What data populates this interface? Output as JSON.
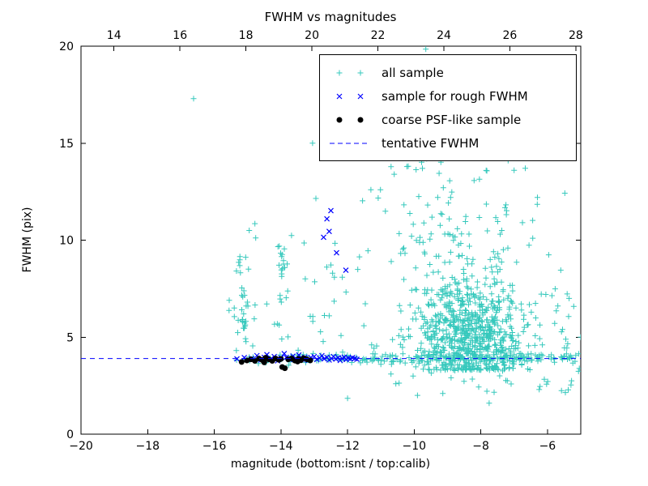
{
  "title": "FWHM vs magnitudes",
  "axes": {
    "bottom": {
      "label": "magnitude (bottom:isnt / top:calib)",
      "ticks": [
        -20,
        -18,
        -16,
        -14,
        -12,
        -10,
        -8,
        -6
      ],
      "labels": [
        "−20",
        "−18",
        "−16",
        "−14",
        "−12",
        "−10",
        "−8",
        "−6"
      ]
    },
    "top": {
      "ticks": [
        14,
        16,
        18,
        20,
        22,
        24,
        26,
        28
      ],
      "labels": [
        "14",
        "16",
        "18",
        "20",
        "22",
        "24",
        "26",
        "28"
      ]
    },
    "left": {
      "label": "FWHM (pix)",
      "ticks": [
        0,
        5,
        10,
        15,
        20
      ],
      "labels": [
        "0",
        "5",
        "10",
        "15",
        "20"
      ]
    }
  },
  "legend": {
    "entries": [
      {
        "label": "all sample",
        "marker": "plus",
        "color": "#35c8bc"
      },
      {
        "label": "sample for rough FWHM",
        "marker": "x",
        "color": "#0000ff"
      },
      {
        "label": "coarse PSF-like sample",
        "marker": "dot",
        "color": "#000000"
      },
      {
        "label": "tentative FWHM",
        "marker": "dashed-line",
        "color": "#0000ff"
      }
    ]
  },
  "chart_data": {
    "type": "scatter",
    "title": "FWHM vs magnitudes",
    "xlabel": "magnitude (bottom:isnt / top:calib)",
    "ylabel": "FWHM (pix)",
    "x_range": [
      -20,
      -5
    ],
    "x_top_range": [
      13,
      28.15
    ],
    "y_range": [
      0,
      20
    ],
    "tentative_fwhm": 3.9,
    "series": [
      {
        "name": "all sample",
        "marker": "plus",
        "color": "#35c8bc",
        "points": [
          [
            -16.62,
            17.3
          ],
          [
            -13.05,
            15.0
          ],
          [
            -9.65,
            19.85
          ],
          [
            -9.15,
            18.55
          ],
          [
            -8.05,
            19.0
          ],
          [
            -10.2,
            16.1
          ],
          [
            -7.35,
            15.2
          ],
          [
            -6.3,
            12.2
          ],
          [
            -5.6,
            8.45
          ],
          [
            -14.78,
            10.85
          ],
          [
            -14.95,
            10.5
          ],
          [
            -12.95,
            12.15
          ],
          [
            -10.6,
            13.4
          ],
          [
            -11.3,
            12.6
          ],
          [
            -7.0,
            13.6
          ],
          [
            -6.75,
            10.9
          ],
          [
            -5.35,
            7.0
          ],
          [
            -9.9,
            2.0
          ],
          [
            -7.75,
            1.6
          ],
          [
            -10.55,
            2.6
          ],
          [
            -12.0,
            1.85
          ],
          [
            -15.55,
            6.9
          ],
          [
            -15.4,
            6.5
          ],
          [
            -12.45,
            8.3
          ],
          [
            -12.55,
            6.1
          ]
        ],
        "clusters": [
          {
            "n": 650,
            "x_dist": "gauss",
            "x": [
              -8.35,
              0.85
            ],
            "y_dist": "gauss",
            "y": [
              4.9,
              1.15
            ],
            "y_min": 3.3
          },
          {
            "n": 170,
            "x_dist": "gauss",
            "x": [
              -8.6,
              0.95
            ],
            "y_dist": "decay",
            "y": [
              6.5,
              15.5
            ]
          },
          {
            "n": 170,
            "x_dist": "uniform",
            "x": [
              -12.6,
              -5.1
            ],
            "y_dist": "gauss",
            "y": [
              3.92,
              0.13
            ]
          },
          {
            "n": 40,
            "x_dist": "uniform",
            "x": [
              -15.5,
              -12.6
            ],
            "y_dist": "gauss",
            "y": [
              3.95,
              0.17
            ]
          },
          {
            "n": 26,
            "x_dist": "gauss",
            "x": [
              -15.15,
              0.09
            ],
            "y_dist": "uniform",
            "y": [
              5.3,
              9.2
            ]
          },
          {
            "n": 16,
            "x_dist": "gauss",
            "x": [
              -13.95,
              0.1
            ],
            "y_dist": "uniform",
            "y": [
              6.8,
              9.7
            ]
          },
          {
            "n": 45,
            "x_dist": "uniform",
            "x": [
              -15.6,
              -11.2
            ],
            "y_dist": "uniform",
            "y": [
              4.4,
              10.5
            ]
          },
          {
            "n": 28,
            "x_dist": "uniform",
            "x": [
              -10.8,
              -5.2
            ],
            "y_dist": "uniform",
            "y": [
              2.1,
              3.4
            ]
          },
          {
            "n": 55,
            "x_dist": "gauss",
            "x": [
              -8.9,
              1.3
            ],
            "y_dist": "uniform",
            "y": [
              9,
              16
            ]
          },
          {
            "n": 30,
            "x_dist": "uniform",
            "x": [
              -6.8,
              -5.0
            ],
            "y_dist": "uniform",
            "y": [
              2.8,
              7.5
            ]
          }
        ]
      },
      {
        "name": "sample for rough FWHM",
        "marker": "x",
        "color": "#0000ff",
        "points": [
          [
            -15.32,
            3.88
          ],
          [
            -15.1,
            3.95
          ],
          [
            -14.88,
            3.9
          ],
          [
            -14.72,
            4.05
          ],
          [
            -14.6,
            3.82
          ],
          [
            -14.5,
            3.96
          ],
          [
            -14.42,
            4.1
          ],
          [
            -14.3,
            3.88
          ],
          [
            -14.2,
            4.0
          ],
          [
            -14.1,
            3.78
          ],
          [
            -14.0,
            3.93
          ],
          [
            -13.9,
            4.15
          ],
          [
            -13.84,
            3.96
          ],
          [
            -13.74,
            3.85
          ],
          [
            -13.64,
            4.02
          ],
          [
            -13.55,
            3.9
          ],
          [
            -13.46,
            4.08
          ],
          [
            -13.36,
            3.86
          ],
          [
            -13.28,
            3.97
          ],
          [
            -13.18,
            3.8
          ],
          [
            -13.1,
            3.95
          ],
          [
            -13.0,
            4.0
          ],
          [
            -12.92,
            3.85
          ],
          [
            -12.84,
            3.93
          ],
          [
            -12.77,
            4.05
          ],
          [
            -12.7,
            3.88
          ],
          [
            -12.62,
            3.96
          ],
          [
            -12.55,
            3.82
          ],
          [
            -12.48,
            3.9
          ],
          [
            -12.42,
            4.0
          ],
          [
            -12.35,
            3.87
          ],
          [
            -12.28,
            3.94
          ],
          [
            -12.22,
            3.8
          ],
          [
            -12.16,
            3.9
          ],
          [
            -12.1,
            3.97
          ],
          [
            -12.04,
            3.85
          ],
          [
            -11.98,
            3.92
          ],
          [
            -11.92,
            3.88
          ],
          [
            -11.85,
            3.95
          ],
          [
            -11.78,
            3.9
          ],
          [
            -11.72,
            3.86
          ],
          [
            -12.5,
            11.52
          ],
          [
            -12.62,
            11.1
          ],
          [
            -12.55,
            10.45
          ],
          [
            -12.72,
            10.15
          ],
          [
            -12.33,
            9.35
          ],
          [
            -12.05,
            8.45
          ]
        ],
        "clusters": []
      },
      {
        "name": "coarse PSF-like sample",
        "marker": "dot",
        "color": "#000000",
        "points": [
          [
            -15.18,
            3.72
          ],
          [
            -15.02,
            3.8
          ],
          [
            -14.9,
            3.86
          ],
          [
            -14.78,
            3.78
          ],
          [
            -14.66,
            3.9
          ],
          [
            -14.56,
            3.82
          ],
          [
            -14.46,
            3.94
          ],
          [
            -14.36,
            3.86
          ],
          [
            -14.26,
            3.78
          ],
          [
            -14.16,
            3.9
          ],
          [
            -14.06,
            3.83
          ],
          [
            -13.96,
            3.46
          ],
          [
            -13.88,
            3.4
          ],
          [
            -13.78,
            3.86
          ],
          [
            -13.68,
            3.9
          ],
          [
            -13.58,
            3.79
          ],
          [
            -13.48,
            3.88
          ],
          [
            -13.4,
            3.81
          ],
          [
            -13.32,
            3.92
          ],
          [
            -13.22,
            3.86
          ],
          [
            -13.12,
            3.8
          ],
          [
            -14.5,
            3.7
          ],
          [
            -14.0,
            3.88
          ],
          [
            -13.5,
            3.74
          ]
        ],
        "clusters": []
      },
      {
        "name": "tentative FWHM",
        "type": "hline",
        "y": 3.9,
        "color": "#0000ff",
        "style": "dashed"
      }
    ]
  }
}
